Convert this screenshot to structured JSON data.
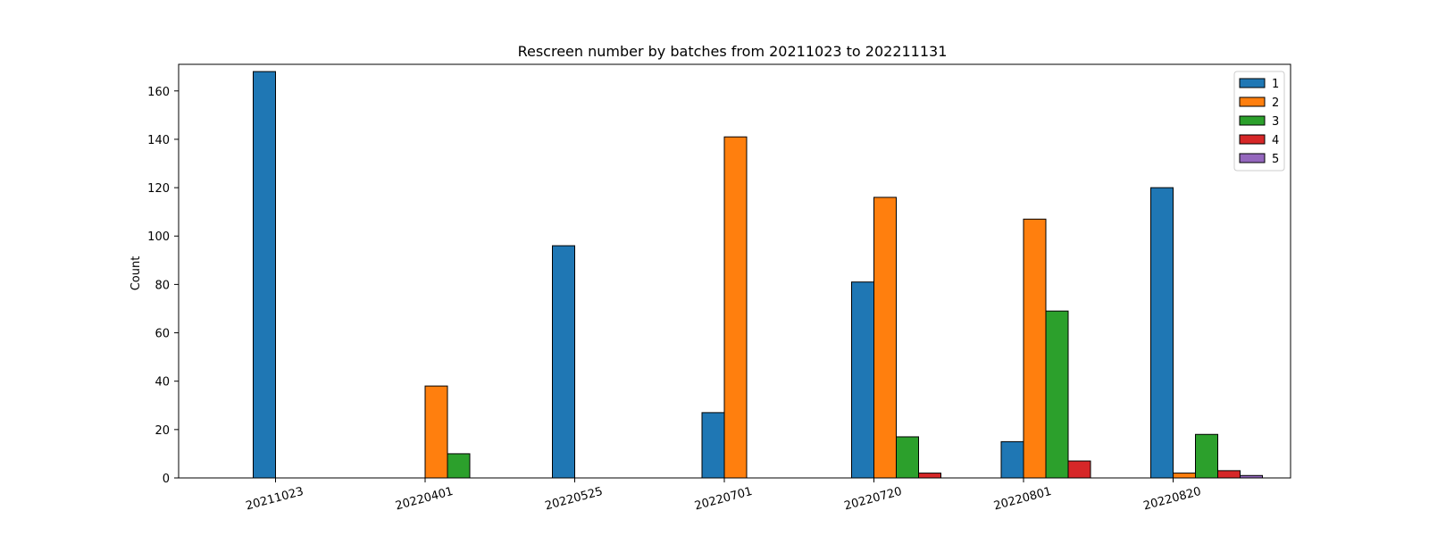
{
  "chart_data": {
    "type": "bar",
    "title": "Rescreen number  by batches from 20211023 to 202211131",
    "xlabel": "",
    "ylabel": "Count",
    "categories": [
      "20211023",
      "20220401",
      "20220525",
      "20220701",
      "20220720",
      "20220801",
      "20220820"
    ],
    "ylim": [
      0,
      171
    ],
    "yticks": [
      0,
      20,
      40,
      60,
      80,
      100,
      120,
      140,
      160
    ],
    "grid": false,
    "legend_position": "top-right",
    "series": [
      {
        "name": "1",
        "color": "#1f77b4",
        "values": [
          168,
          0,
          96,
          27,
          81,
          15,
          120
        ]
      },
      {
        "name": "2",
        "color": "#ff7f0e",
        "values": [
          0,
          38,
          0,
          141,
          116,
          107,
          2
        ]
      },
      {
        "name": "3",
        "color": "#2ca02c",
        "values": [
          0,
          10,
          0,
          0,
          17,
          69,
          18
        ]
      },
      {
        "name": "4",
        "color": "#d62728",
        "values": [
          0,
          0,
          0,
          0,
          2,
          7,
          3
        ]
      },
      {
        "name": "5",
        "color": "#9467bd",
        "values": [
          0,
          0,
          0,
          0,
          0,
          0,
          1
        ]
      }
    ]
  }
}
